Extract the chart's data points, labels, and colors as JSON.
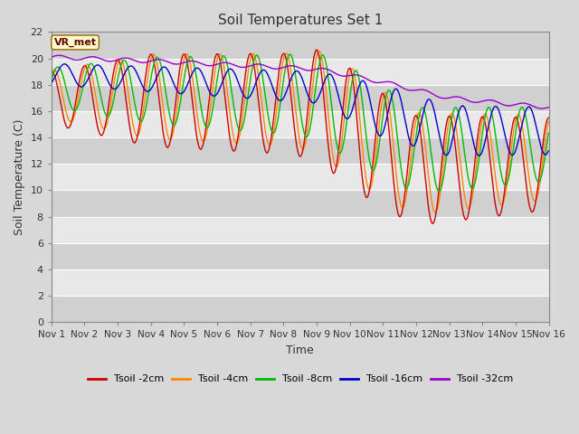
{
  "title": "Soil Temperatures Set 1",
  "xlabel": "Time",
  "ylabel": "Soil Temperature (C)",
  "ylim": [
    0,
    22
  ],
  "yticks": [
    0,
    2,
    4,
    6,
    8,
    10,
    12,
    14,
    16,
    18,
    20,
    22
  ],
  "xtick_labels": [
    "Nov 1",
    "Nov 2",
    "Nov 3",
    "Nov 4",
    "Nov 5",
    "Nov 6",
    "Nov 7",
    "Nov 8",
    "Nov 9",
    "Nov 10",
    "Nov 11",
    "Nov 12",
    "Nov 13",
    "Nov 14",
    "Nov 15",
    "Nov 16"
  ],
  "colors": {
    "Tsoil -2cm": "#cc0000",
    "Tsoil -4cm": "#ff8800",
    "Tsoil -8cm": "#00bb00",
    "Tsoil -16cm": "#0000cc",
    "Tsoil -32cm": "#9900cc"
  },
  "annotation_text": "VR_met",
  "annotation_bg": "#ffffcc",
  "annotation_edge": "#996600",
  "annotation_fg": "#660000",
  "bg_color": "#d8d8d8",
  "plot_bg_light": "#e8e8e8",
  "plot_bg_dark": "#d0d0d0",
  "grid_line_color": "#ffffff",
  "n_days": 15,
  "dt_hours": 0.25
}
